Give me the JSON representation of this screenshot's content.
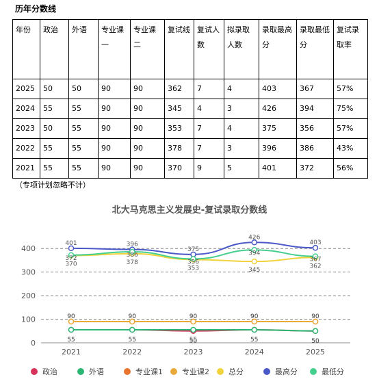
{
  "header": {
    "title": "历年分数线"
  },
  "table": {
    "columns": [
      "年份",
      "政治",
      "外语",
      "专业课一",
      "专业课二",
      "复试线",
      "复试人数",
      "拟录取人数",
      "录取最高分",
      "录取最低分",
      "复试录取率"
    ],
    "rows": [
      [
        "2025",
        "50",
        "50",
        "90",
        "90",
        "362",
        "7",
        "4",
        "403",
        "367",
        "57%"
      ],
      [
        "2024",
        "55",
        "55",
        "90",
        "90",
        "345",
        "4",
        "3",
        "426",
        "394",
        "75%"
      ],
      [
        "2023",
        "50",
        "55",
        "90",
        "90",
        "353",
        "7",
        "4",
        "375",
        "356",
        "57%"
      ],
      [
        "2022",
        "55",
        "55",
        "90",
        "90",
        "378",
        "7",
        "3",
        "396",
        "386",
        "43%"
      ],
      [
        "2021",
        "55",
        "55",
        "90",
        "90",
        "370",
        "9",
        "5",
        "401",
        "372",
        "56%"
      ]
    ]
  },
  "note": "（专项计划忽略不计）",
  "chart_data": {
    "type": "line",
    "title": "北大马克思主义发展史-复试录取分数线",
    "categories": [
      "2021",
      "2022",
      "2023",
      "2024",
      "2025"
    ],
    "ylim": [
      0,
      450
    ],
    "yticks": [
      0,
      100,
      200,
      300,
      400
    ],
    "grid": true,
    "series": [
      {
        "name": "政治",
        "color": "#d6325a",
        "values": [
          55,
          55,
          50,
          55,
          50
        ]
      },
      {
        "name": "外语",
        "color": "#2bb673",
        "values": [
          55,
          55,
          55,
          55,
          50
        ]
      },
      {
        "name": "专业课1",
        "color": "#e8742e",
        "values": [
          90,
          90,
          90,
          90,
          90
        ]
      },
      {
        "name": "专业课2",
        "color": "#e9a93a",
        "values": [
          90,
          90,
          90,
          90,
          90
        ]
      },
      {
        "name": "总分",
        "color": "#f0d33c",
        "values": [
          370,
          378,
          353,
          345,
          362
        ]
      },
      {
        "name": "最高分",
        "color": "#4a58c8",
        "values": [
          401,
          396,
          375,
          426,
          403
        ]
      },
      {
        "name": "最低分",
        "color": "#45cf8f",
        "values": [
          372,
          386,
          356,
          394,
          367
        ]
      }
    ]
  }
}
